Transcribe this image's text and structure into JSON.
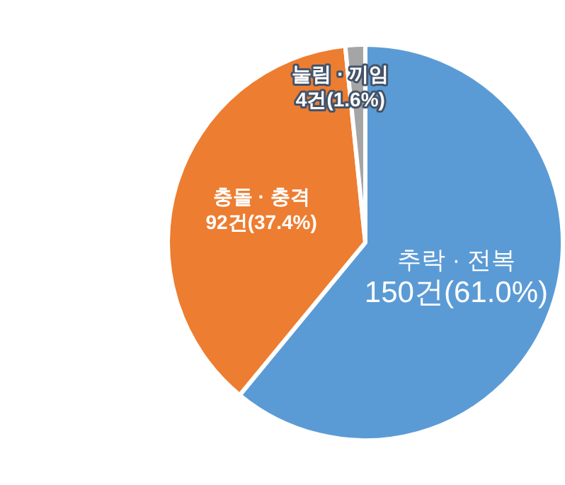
{
  "chart_data": {
    "type": "pie",
    "categories": [
      "추락 · 전복",
      "충돌 · 충격",
      "눌림 · 끼임"
    ],
    "values": [
      150,
      92,
      4
    ],
    "colors": [
      "#5b9bd5",
      "#ed7d31",
      "#a5a5a5"
    ],
    "value_labels": [
      "150건(61.0%)",
      "92건(37.4%)",
      "4건(1.6%)"
    ],
    "legend": false
  }
}
